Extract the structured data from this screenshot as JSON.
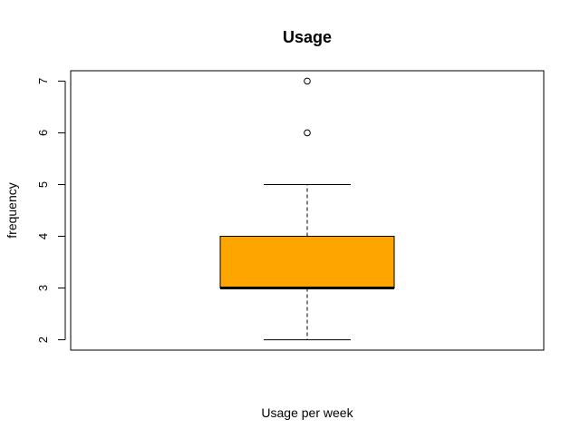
{
  "chart_data": {
    "type": "box",
    "title": "Usage",
    "xlabel": "Usage per week",
    "ylabel": "frequency",
    "ylim": [
      1.8,
      7.2
    ],
    "yticks": [
      "2",
      "3",
      "4",
      "5",
      "6",
      "7"
    ],
    "box": {
      "min": 2,
      "q1": 3,
      "median": 3,
      "q3": 4,
      "max": 5,
      "outliers": [
        6,
        7
      ]
    },
    "fill_color": "#FFA500"
  }
}
